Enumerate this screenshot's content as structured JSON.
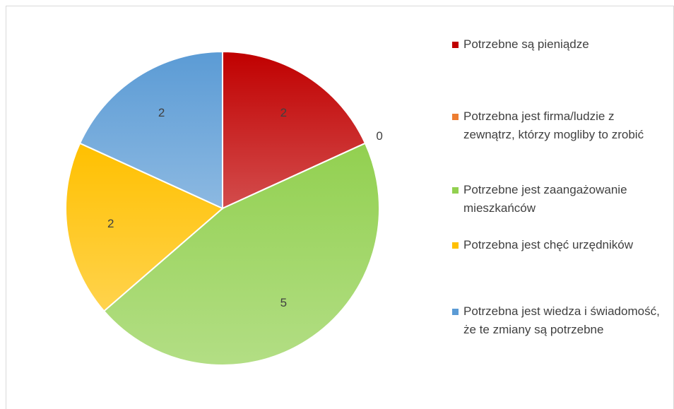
{
  "chart_data": {
    "type": "pie",
    "categories": [
      "Potrzebne są pieniądze",
      "Potrzebna jest firma/ludzie z zewnątrz, którzy mogliby to zrobić",
      "Potrzebne jest zaangażowanie mieszkańców",
      "Potrzebna jest chęć urzędników",
      "Potrzebna jest wiedza i świadomość, że te zmiany są potrzebne"
    ],
    "values": [
      2,
      0,
      5,
      2,
      2
    ],
    "colors": [
      "#c00000",
      "#ed7d31",
      "#92d050",
      "#ffc000",
      "#5b9bd5"
    ],
    "legend": "right"
  }
}
